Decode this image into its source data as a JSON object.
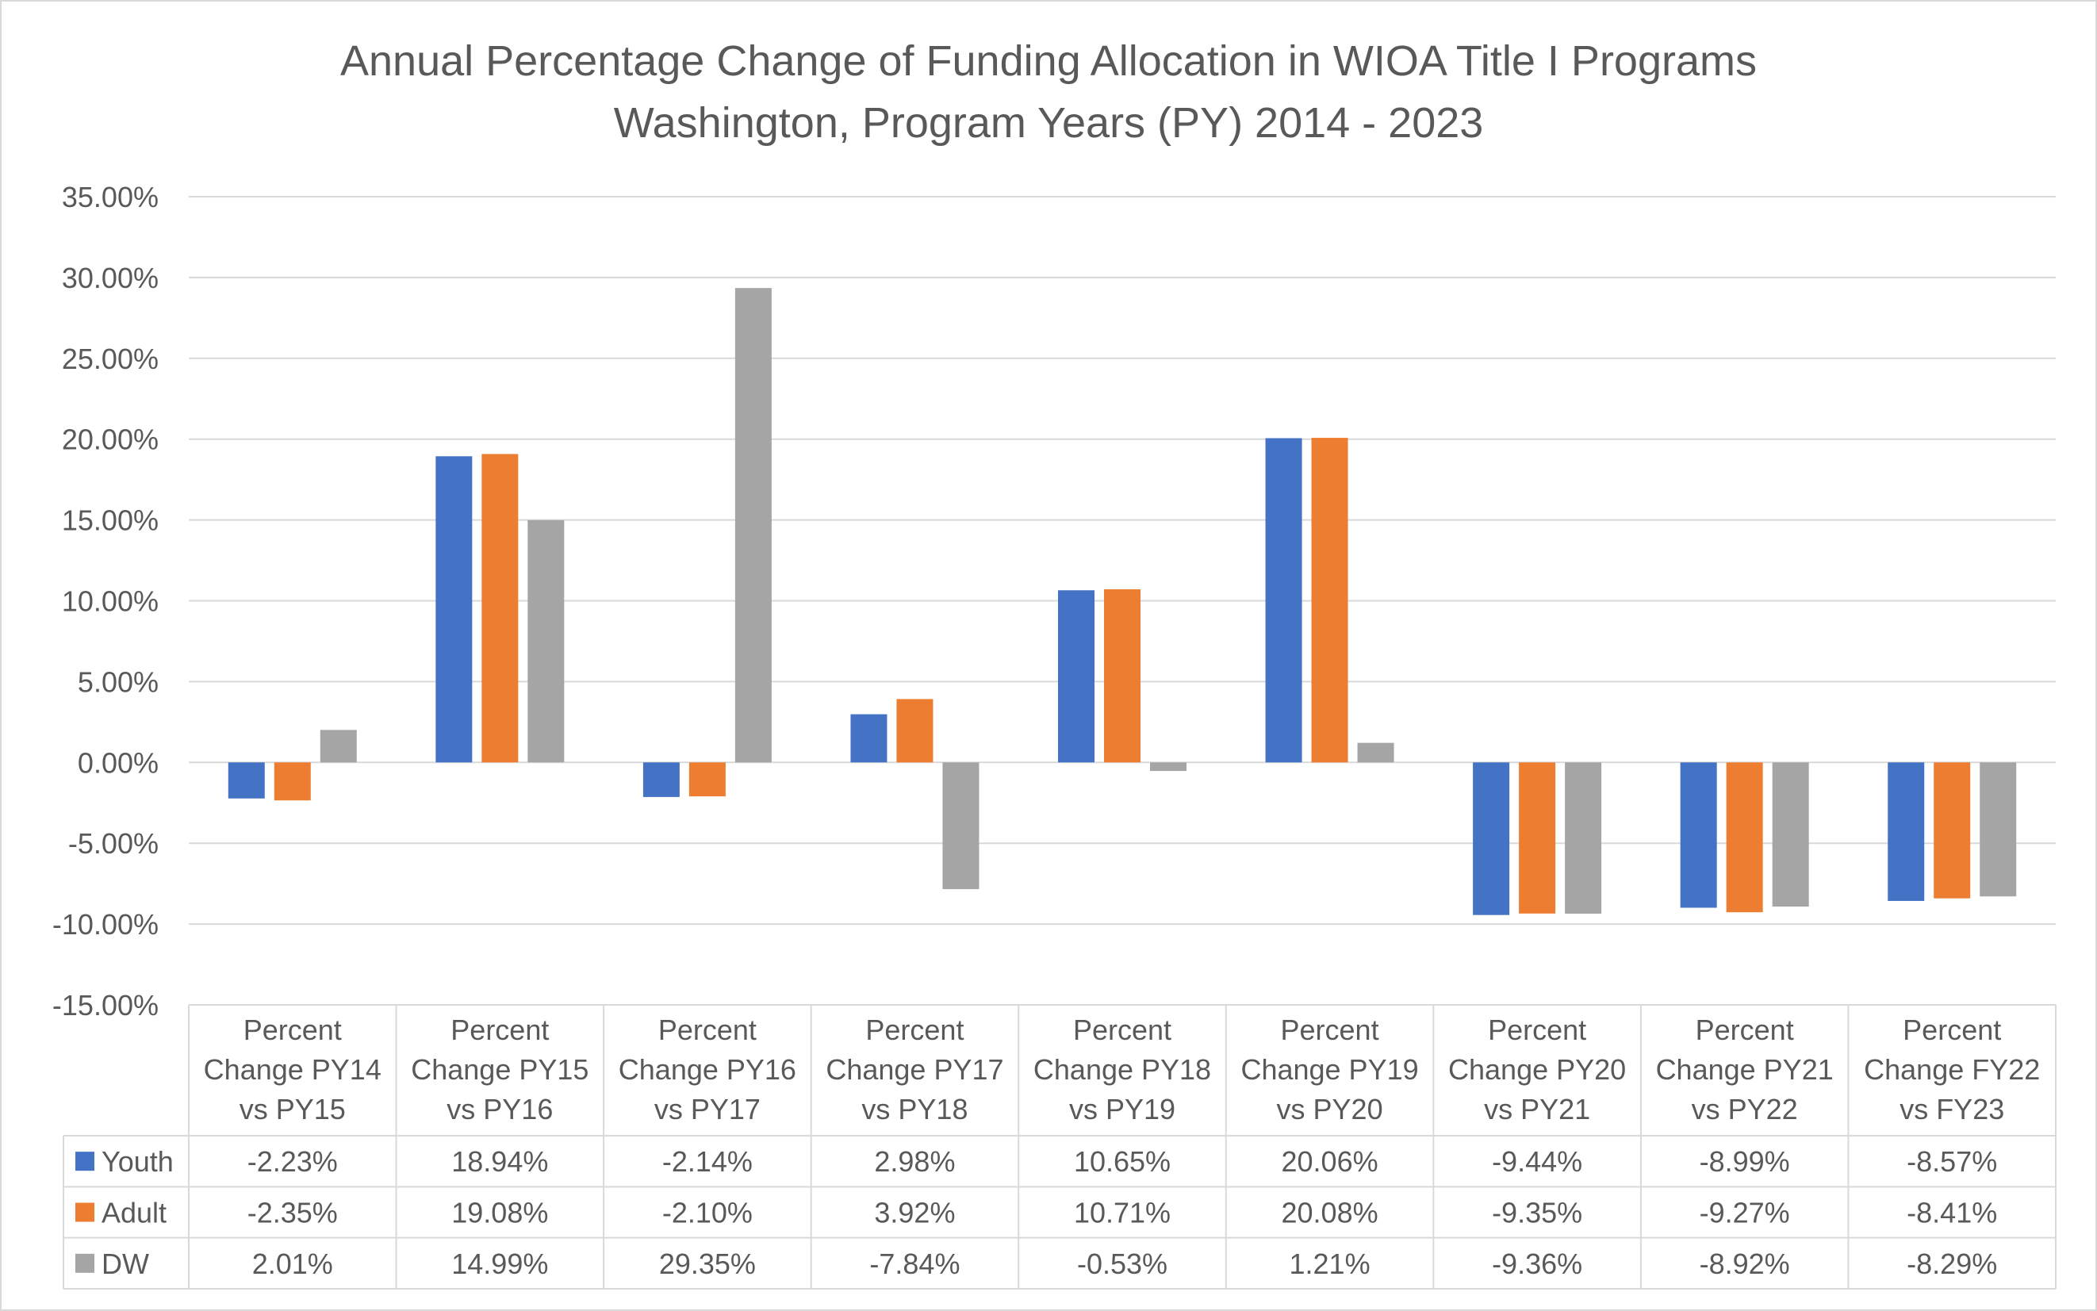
{
  "chart_data": {
    "type": "bar",
    "title": "Annual Percentage Change of Funding Allocation in WIOA Title I Programs",
    "subtitle": "Washington, Program Years (PY) 2014 - 2023",
    "categories": [
      [
        "Percent",
        "Change PY14",
        "vs PY15"
      ],
      [
        "Percent",
        "Change PY15",
        "vs PY16"
      ],
      [
        "Percent",
        "Change PY16",
        "vs PY17"
      ],
      [
        "Percent",
        "Change PY17",
        "vs PY18"
      ],
      [
        "Percent",
        "Change PY18",
        "vs PY19"
      ],
      [
        "Percent",
        "Change PY19",
        "vs PY20"
      ],
      [
        "Percent",
        "Change PY20",
        "vs PY21"
      ],
      [
        "Percent",
        "Change PY21",
        "vs PY22"
      ],
      [
        "Percent",
        "Change FY22",
        "vs FY23"
      ]
    ],
    "series": [
      {
        "name": "Youth",
        "color": "#4472C4",
        "values": [
          -2.23,
          18.94,
          -2.14,
          2.98,
          10.65,
          20.06,
          -9.44,
          -8.99,
          -8.57
        ],
        "labels": [
          "-2.23%",
          "18.94%",
          "-2.14%",
          "2.98%",
          "10.65%",
          "20.06%",
          "-9.44%",
          "-8.99%",
          "-8.57%"
        ]
      },
      {
        "name": "Adult",
        "color": "#ED7D31",
        "values": [
          -2.35,
          19.08,
          -2.1,
          3.92,
          10.71,
          20.08,
          -9.35,
          -9.27,
          -8.41
        ],
        "labels": [
          "-2.35%",
          "19.08%",
          "-2.10%",
          "3.92%",
          "10.71%",
          "20.08%",
          "-9.35%",
          "-9.27%",
          "-8.41%"
        ]
      },
      {
        "name": "DW",
        "color": "#A5A5A5",
        "values": [
          2.01,
          14.99,
          29.35,
          -7.84,
          -0.53,
          1.21,
          -9.36,
          -8.92,
          -8.29
        ],
        "labels": [
          "2.01%",
          "14.99%",
          "29.35%",
          "-7.84%",
          "-0.53%",
          "1.21%",
          "-9.36%",
          "-8.92%",
          "-8.29%"
        ]
      }
    ],
    "ylim": [
      -15,
      35
    ],
    "yticks": [
      35,
      30,
      25,
      20,
      15,
      10,
      5,
      0,
      -5,
      -10,
      -15
    ],
    "ytick_labels": [
      "35.00%",
      "30.00%",
      "25.00%",
      "20.00%",
      "15.00%",
      "10.00%",
      "5.00%",
      "0.00%",
      "-5.00%",
      "-10.00%",
      "-15.00%"
    ],
    "grid": true,
    "legend": "data table below chart"
  }
}
